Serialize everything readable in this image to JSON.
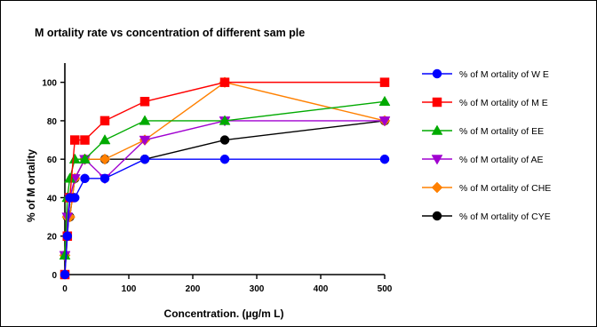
{
  "chart_data": {
    "type": "line",
    "title": "M ortality rate vs concentration of different sam ple",
    "xlabel": "Concentration. (µg/m L)",
    "ylabel": "% of M ortality",
    "xlim": [
      0,
      500
    ],
    "ylim": [
      0,
      110
    ],
    "xticks": [
      0,
      100,
      200,
      300,
      400,
      500
    ],
    "yticks": [
      0,
      20,
      40,
      60,
      80,
      100
    ],
    "grid": false,
    "legend_position": "right",
    "x": [
      0,
      3.9,
      7.8,
      15.6,
      31.25,
      62.5,
      125,
      250,
      500
    ],
    "series": [
      {
        "name": "% of M ortality of W E",
        "color": "#0000ff",
        "marker": "circle",
        "values": [
          0,
          20,
          40,
          40,
          50,
          50,
          60,
          60,
          60
        ]
      },
      {
        "name": "% of M ortality of M E",
        "color": "#ff0000",
        "marker": "square",
        "values": [
          0,
          20,
          40,
          70,
          70,
          80,
          90,
          100,
          100
        ]
      },
      {
        "name": "% of M ortality of EE",
        "color": "#00aa00",
        "marker": "triangle-up",
        "values": [
          10,
          40,
          50,
          60,
          60,
          70,
          80,
          80,
          90
        ]
      },
      {
        "name": "% of M ortality of AE",
        "color": "#a000d0",
        "marker": "triangle-down",
        "values": [
          10,
          30,
          40,
          50,
          60,
          50,
          70,
          80,
          80
        ]
      },
      {
        "name": "% of M ortality of CHE",
        "color": "#ff8000",
        "marker": "diamond",
        "values": [
          10,
          30,
          30,
          50,
          60,
          60,
          70,
          100,
          80
        ]
      },
      {
        "name": "% of M ortality of CYE",
        "color": "#000000",
        "marker": "circle",
        "values": [
          10,
          30,
          30,
          50,
          60,
          60,
          60,
          70,
          80
        ]
      }
    ]
  }
}
